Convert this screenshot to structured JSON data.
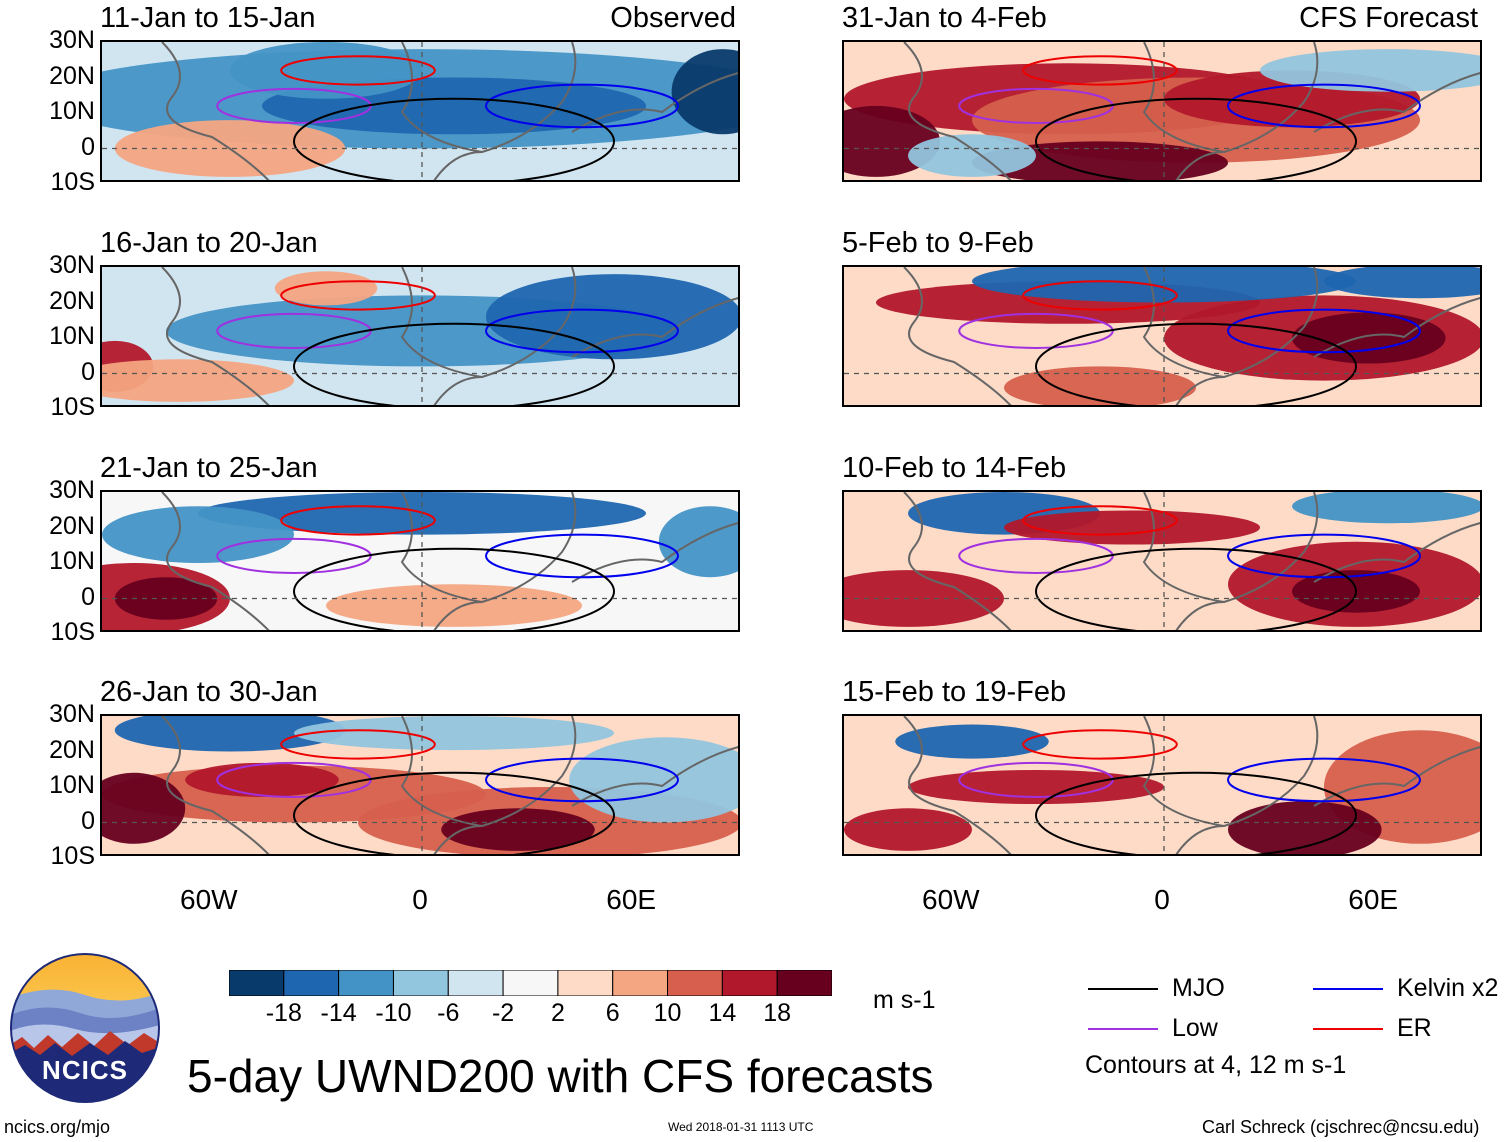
{
  "columns": [
    {
      "tag": "Observed",
      "panels": [
        "11-Jan to 15-Jan",
        "16-Jan to 20-Jan",
        "21-Jan to 25-Jan",
        "26-Jan to 30-Jan"
      ]
    },
    {
      "tag": "CFS Forecast",
      "panels": [
        "31-Jan to 4-Feb",
        "5-Feb to 9-Feb",
        "10-Feb to 14-Feb",
        "15-Feb to 19-Feb"
      ]
    }
  ],
  "lat_labels": [
    "30N",
    "20N",
    "10N",
    "0",
    "10S"
  ],
  "lon_labels": [
    "60W",
    "0",
    "60E"
  ],
  "colorbar": {
    "colors": [
      "#083a6b",
      "#1f66b0",
      "#4393c6",
      "#92c5de",
      "#d1e5f0",
      "#f7f7f7",
      "#fddbc7",
      "#f4a582",
      "#d6604d",
      "#b2182b",
      "#67001f"
    ],
    "labels": [
      "-18",
      "-14",
      "-10",
      "-6",
      "-2",
      "2",
      "6",
      "10",
      "14",
      "18"
    ],
    "units": "m s-1"
  },
  "legend": {
    "items": [
      {
        "label": "MJO",
        "color": "#000000"
      },
      {
        "label": "Kelvin x2",
        "color": "#0000ee"
      },
      {
        "label": "Low",
        "color": "#a030e0"
      },
      {
        "label": "ER",
        "color": "#ee0000"
      }
    ],
    "note": "Contours at 4, 12 m s-1"
  },
  "logo": {
    "text": "NCICS"
  },
  "title": "5-day UWND200 with CFS forecasts",
  "footer": {
    "url": "ncics.org/mjo",
    "timestamp": "Wed 2018-01-31 1113 UTC",
    "author": "Carl Schreck (cjschrec@ncsu.edu)"
  }
}
